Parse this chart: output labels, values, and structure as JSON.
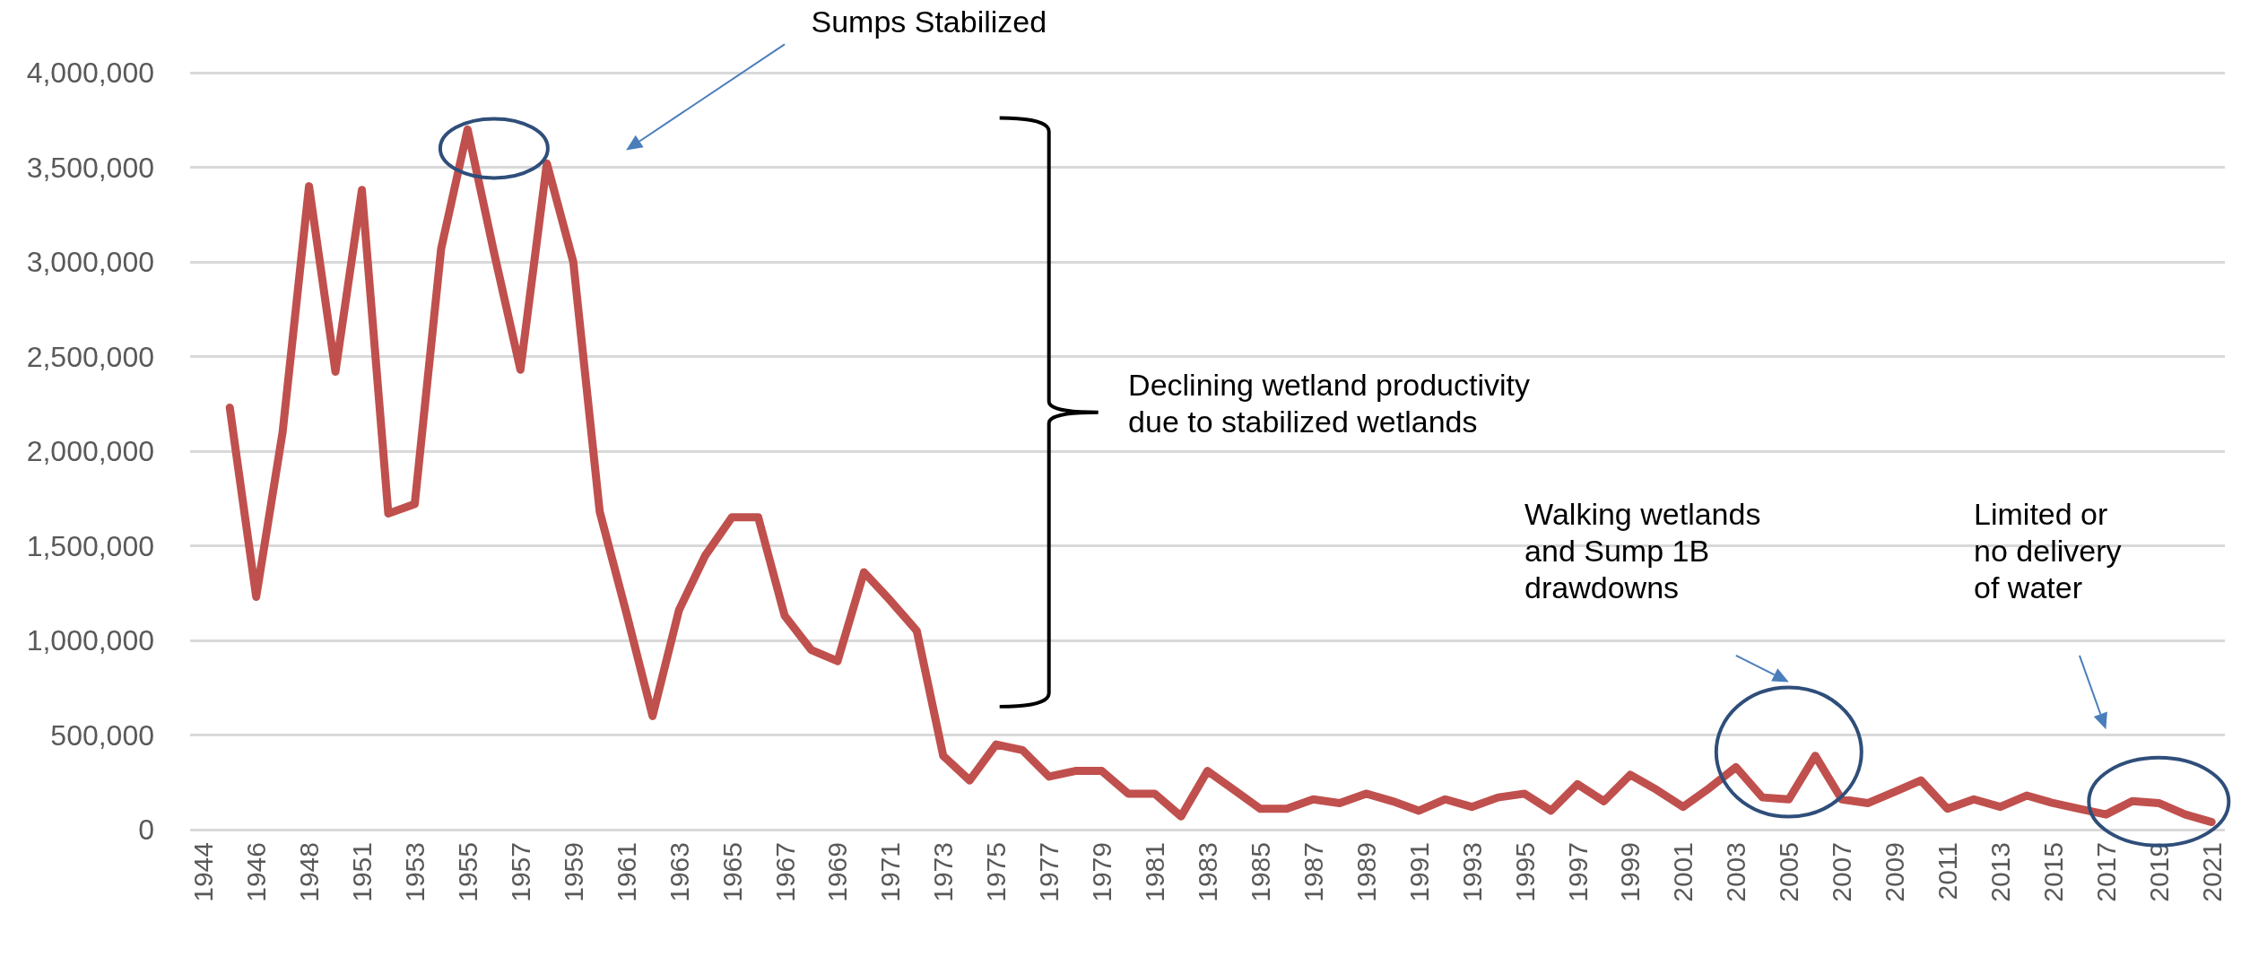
{
  "chart_data": {
    "type": "line",
    "categories": [
      "1944",
      null,
      "1946",
      null,
      "1948",
      null,
      "1951",
      null,
      "1953",
      null,
      "1955",
      null,
      "1957",
      null,
      "1959",
      null,
      "1961",
      null,
      "1963",
      null,
      "1965",
      null,
      "1967",
      null,
      "1969",
      null,
      "1971",
      null,
      "1973",
      null,
      "1975",
      null,
      "1977",
      null,
      "1979",
      null,
      "1981",
      null,
      "1983",
      null,
      "1985",
      null,
      "1987",
      null,
      "1989",
      null,
      "1991",
      null,
      "1993",
      null,
      "1995",
      null,
      "1997",
      null,
      "1999",
      null,
      "2001",
      null,
      "2003",
      null,
      "2005",
      null,
      "2007",
      null,
      "2009",
      null,
      "2011",
      null,
      "2013",
      null,
      "2015",
      null,
      "2017",
      null,
      "2019",
      null,
      "2021"
    ],
    "series": [
      {
        "color": "#c0504d",
        "values": [
          null,
          2230000,
          1230000,
          2100000,
          3400000,
          2420000,
          3380000,
          1670000,
          1720000,
          3070000,
          3700000,
          3050000,
          2430000,
          3520000,
          3000000,
          1680000,
          1150000,
          600000,
          1160000,
          1450000,
          1650000,
          1650000,
          1130000,
          950000,
          890000,
          1360000,
          1210000,
          1050000,
          390000,
          260000,
          450000,
          420000,
          280000,
          310000,
          310000,
          190000,
          190000,
          70000,
          310000,
          210000,
          110000,
          110000,
          160000,
          140000,
          190000,
          150000,
          100000,
          160000,
          120000,
          170000,
          190000,
          100000,
          240000,
          150000,
          290000,
          210000,
          120000,
          220000,
          330000,
          170000,
          160000,
          390000,
          160000,
          140000,
          200000,
          260000,
          110000,
          160000,
          120000,
          180000,
          140000,
          110000,
          80000,
          150000,
          140000,
          80000,
          40000
        ]
      }
    ],
    "ylim": [
      0,
      4000000
    ],
    "yticks": [
      0,
      {
        "value": 500000,
        "label": "500,000"
      },
      {
        "value": 1000000,
        "label": "1,000,000"
      },
      {
        "value": 1500000,
        "label": "1,500,000"
      },
      {
        "value": 2000000,
        "label": "2,000,000"
      },
      {
        "value": 2500000,
        "label": "2,500,000"
      },
      {
        "value": 3000000,
        "label": "3,000,000"
      },
      {
        "value": 3500000,
        "label": "3,500,000"
      },
      {
        "value": 4000000,
        "label": "4,000,000"
      }
    ],
    "grid": "y",
    "marker": "none",
    "line_style": "solid",
    "annotations": [
      "Sumps Stabilized",
      "Declining wetland productivity due to stabilized wetlands",
      "Walking wetlands and Sump 1B drawdowns",
      "Limited or no delivery of water"
    ]
  }
}
